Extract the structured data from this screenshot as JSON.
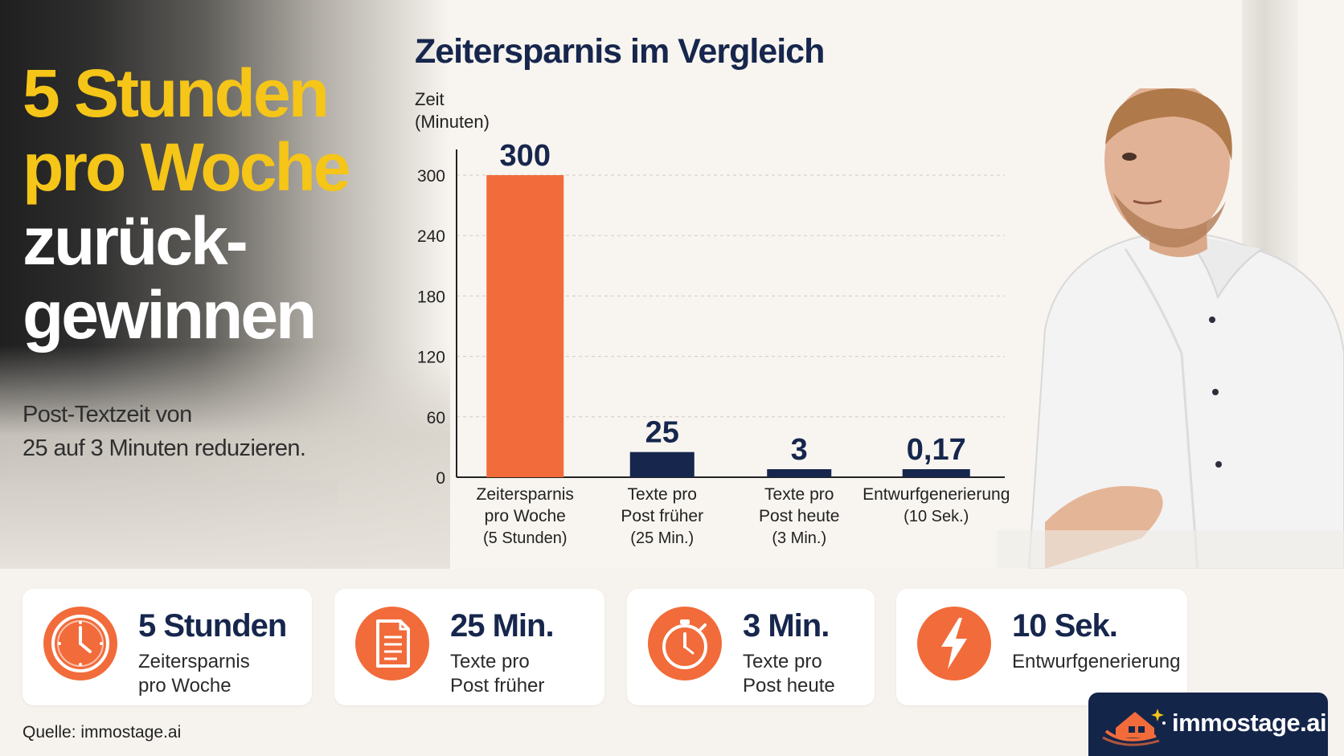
{
  "headline": {
    "line1": "5 Stunden",
    "line2": "pro Woche",
    "line3": "zurück-",
    "line4": "gewinnen"
  },
  "subtext": {
    "line1": "Post-Textzeit von",
    "line2": "25 auf 3 Minuten reduzieren."
  },
  "chart_data": {
    "type": "bar",
    "title": "Zeitersparnis im Vergleich",
    "ylabel": [
      "Zeit",
      "(Minuten)"
    ],
    "xlabel": "",
    "ylim": [
      0,
      300
    ],
    "yticks": [
      0,
      60,
      120,
      180,
      240,
      300
    ],
    "grid": true,
    "categories": [
      [
        "Zeitersparnis",
        "pro Woche",
        "(5 Stunden)"
      ],
      [
        "Texte pro",
        "Post früher",
        "(25 Min.)"
      ],
      [
        "Texte pro",
        "Post heute",
        "(3 Min.)"
      ],
      [
        "Entwurfgenerierung",
        "(10 Sek.)"
      ]
    ],
    "values": [
      300,
      25,
      3,
      0.17
    ],
    "value_labels": [
      "300",
      "25",
      "3",
      "0,17"
    ],
    "colors": [
      "#f26b3a",
      "#16264d",
      "#16264d",
      "#16264d"
    ]
  },
  "stats": [
    {
      "icon": "clock-icon",
      "value": "5 Stunden",
      "label1": "Zeitersparnis",
      "label2": "pro Woche"
    },
    {
      "icon": "document-icon",
      "value": "25 Min.",
      "label1": "Texte pro",
      "label2": "Post früher"
    },
    {
      "icon": "stopwatch-icon",
      "value": "3 Min.",
      "label1": "Texte pro",
      "label2": "Post heute"
    },
    {
      "icon": "lightning-icon",
      "value": "10 Sek.",
      "label1": "Entwurfgenerierung",
      "label2": ""
    }
  ],
  "source": "Quelle: immostage.ai",
  "brand": {
    "name": "immostage.ai"
  },
  "colors": {
    "accent_orange": "#f26b3a",
    "navy": "#16264d",
    "yellow": "#f5c518"
  }
}
